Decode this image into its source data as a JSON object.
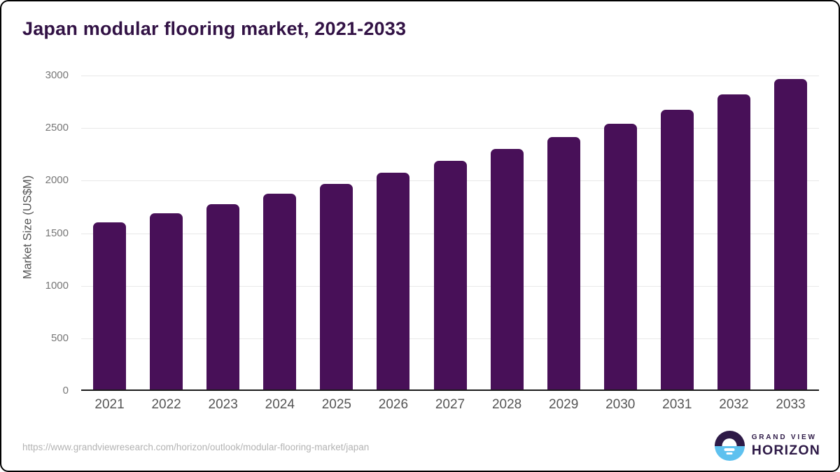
{
  "title": "Japan modular flooring market, 2021-2033",
  "chart_data": {
    "type": "bar",
    "title": "Japan modular flooring market, 2021-2033",
    "categories": [
      "2021",
      "2022",
      "2023",
      "2024",
      "2025",
      "2026",
      "2027",
      "2028",
      "2029",
      "2030",
      "2031",
      "2032",
      "2033"
    ],
    "values": [
      1595,
      1685,
      1770,
      1870,
      1965,
      2070,
      2185,
      2300,
      2410,
      2540,
      2675,
      2820,
      2970
    ],
    "xlabel": "",
    "ylabel": "Market Size (US$M)",
    "ylim": [
      0,
      3000
    ],
    "yticks": [
      0,
      500,
      1000,
      1500,
      2000,
      2500,
      3000
    ],
    "grid": "horizontal",
    "legend": "none"
  },
  "colors": {
    "bar": "#481058",
    "title_text": "#321245",
    "gridline": "#e8e8e8",
    "axis_line": "#1a1a1a",
    "y_tick_text": "#777777",
    "x_tick_text": "#555555",
    "source_text": "#b3b3b3",
    "brand_purple": "#2e1a47",
    "brand_blue": "#5ec1ef"
  },
  "footer": {
    "source_url": "https://www.grandviewresearch.com/horizon/outlook/modular-flooring-market/japan",
    "logo": {
      "line1": "GRAND VIEW",
      "line2": "HORIZON"
    }
  }
}
